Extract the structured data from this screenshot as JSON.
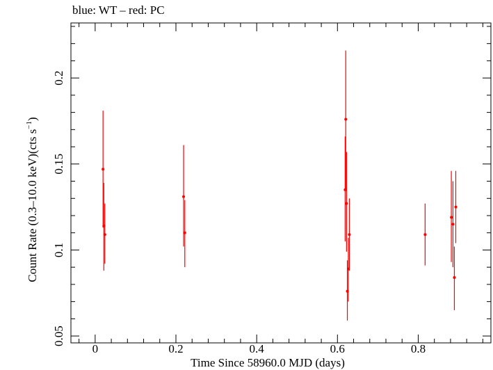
{
  "chart_data": {
    "type": "scatter",
    "title": "blue: WT – red: PC",
    "xlabel": "Time Since 58960.0 MJD (days)",
    "ylabel_main": "Count Rate (0.3–10.0 keV)(cts s",
    "ylabel_sup": "−1",
    "ylabel_close": ")",
    "xlim": [
      -0.06,
      0.98
    ],
    "ylim": [
      0.046,
      0.232
    ],
    "x_ticks": [
      {
        "value": 0,
        "label": "0"
      },
      {
        "value": 0.2,
        "label": "0.2"
      },
      {
        "value": 0.4,
        "label": "0.4"
      },
      {
        "value": 0.6,
        "label": "0.6"
      },
      {
        "value": 0.8,
        "label": "0.8"
      }
    ],
    "y_ticks": [
      {
        "value": 0.05,
        "label": "0.05"
      },
      {
        "value": 0.1,
        "label": "0.1"
      },
      {
        "value": 0.15,
        "label": "0.15"
      },
      {
        "value": 0.2,
        "label": "0.2"
      }
    ],
    "series": [
      {
        "name": "PC",
        "color": "#ff0000",
        "points": [
          {
            "x": 0.0195,
            "y": 0.147,
            "ylo": 0.113,
            "yhi": 0.181
          },
          {
            "x": 0.0215,
            "y": 0.114,
            "ylo": 0.088,
            "yhi": 0.139
          },
          {
            "x": 0.024,
            "y": 0.109,
            "ylo": 0.092,
            "yhi": 0.127
          },
          {
            "x": 0.219,
            "y": 0.131,
            "ylo": 0.102,
            "yhi": 0.161
          },
          {
            "x": 0.222,
            "y": 0.11,
            "ylo": 0.09,
            "yhi": 0.129
          },
          {
            "x": 0.619,
            "y": 0.135,
            "ylo": 0.105,
            "yhi": 0.166
          },
          {
            "x": 0.6205,
            "y": 0.176,
            "ylo": 0.135,
            "yhi": 0.216
          },
          {
            "x": 0.6225,
            "y": 0.127,
            "ylo": 0.099,
            "yhi": 0.157
          },
          {
            "x": 0.6245,
            "y": 0.076,
            "ylo": 0.059,
            "yhi": 0.094
          },
          {
            "x": 0.627,
            "y": 0.089,
            "ylo": 0.07,
            "yhi": 0.107
          },
          {
            "x": 0.6295,
            "y": 0.109,
            "ylo": 0.088,
            "yhi": 0.13
          },
          {
            "x": 0.817,
            "y": 0.109,
            "ylo": 0.091,
            "yhi": 0.127
          },
          {
            "x": 0.882,
            "y": 0.119,
            "ylo": 0.093,
            "yhi": 0.146
          },
          {
            "x": 0.886,
            "y": 0.115,
            "ylo": 0.09,
            "yhi": 0.14
          },
          {
            "x": 0.8895,
            "y": 0.084,
            "ylo": 0.065,
            "yhi": 0.102
          },
          {
            "x": 0.893,
            "y": 0.125,
            "ylo": 0.104,
            "yhi": 0.146
          }
        ]
      }
    ]
  }
}
